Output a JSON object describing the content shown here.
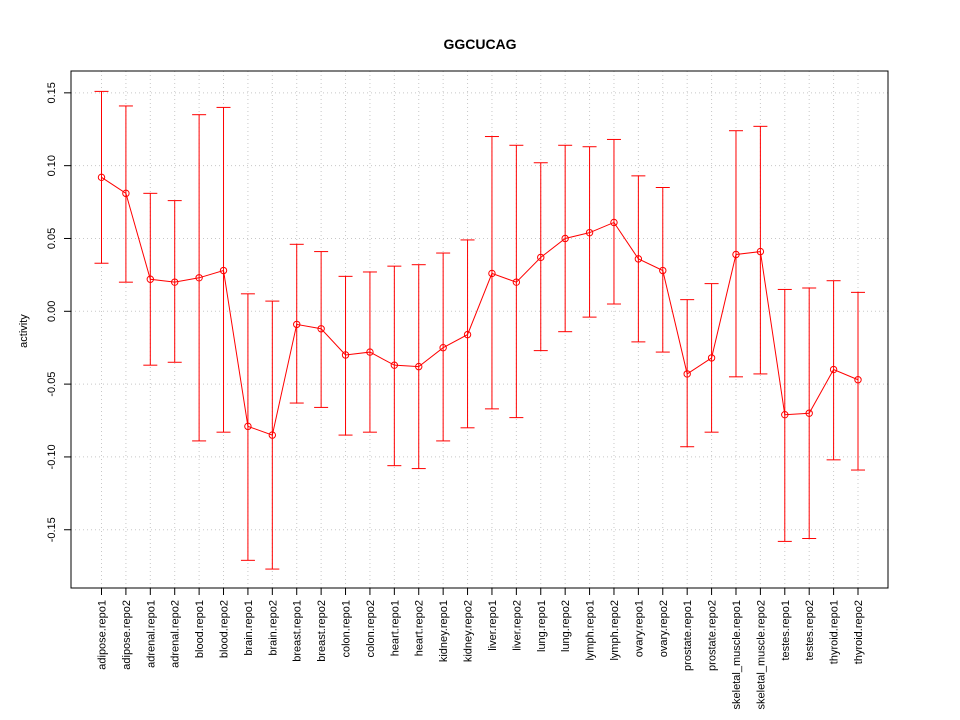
{
  "chart_data": {
    "type": "line",
    "title": "GGCUCAG",
    "xlabel": "",
    "ylabel": "activity",
    "ylim": [
      -0.19,
      0.165
    ],
    "yticks": [
      -0.15,
      -0.1,
      -0.05,
      0.0,
      0.05,
      0.1,
      0.15
    ],
    "ytick_labels": [
      "-0.15",
      "-0.10",
      "-0.05",
      "0.00",
      "0.05",
      "0.10",
      "0.15"
    ],
    "grid": true,
    "color": "#ff0000",
    "categories": [
      "adipose.repo1",
      "adipose.repo2",
      "adrenal.repo1",
      "adrenal.repo2",
      "blood.repo1",
      "blood.repo2",
      "brain.repo1",
      "brain.repo2",
      "breast.repo1",
      "breast.repo2",
      "colon.repo1",
      "colon.repo2",
      "heart.repo1",
      "heart.repo2",
      "kidney.repo1",
      "kidney.repo2",
      "liver.repo1",
      "liver.repo2",
      "lung.repo1",
      "lung.repo2",
      "lymph.repo1",
      "lymph.repo2",
      "ovary.repo1",
      "ovary.repo2",
      "prostate.repo1",
      "prostate.repo2",
      "skeletal_muscle.repo1",
      "skeletal_muscle.repo2",
      "testes.repo1",
      "testes.repo2",
      "thyroid.repo1",
      "thyroid.repo2"
    ],
    "values": [
      0.092,
      0.081,
      0.022,
      0.02,
      0.023,
      0.028,
      -0.079,
      -0.085,
      -0.009,
      -0.012,
      -0.03,
      -0.028,
      -0.037,
      -0.038,
      -0.025,
      -0.016,
      0.026,
      0.02,
      0.037,
      0.05,
      0.054,
      0.061,
      0.036,
      0.028,
      -0.043,
      -0.032,
      0.039,
      0.041,
      -0.071,
      -0.07,
      -0.04,
      -0.047
    ],
    "upper": [
      0.151,
      0.141,
      0.081,
      0.076,
      0.135,
      0.14,
      0.012,
      0.007,
      0.046,
      0.041,
      0.024,
      0.027,
      0.031,
      0.032,
      0.04,
      0.049,
      0.12,
      0.114,
      0.102,
      0.114,
      0.113,
      0.118,
      0.093,
      0.085,
      0.008,
      0.019,
      0.124,
      0.127,
      0.015,
      0.016,
      0.021,
      0.013
    ],
    "lower": [
      0.033,
      0.02,
      -0.037,
      -0.035,
      -0.089,
      -0.083,
      -0.171,
      -0.177,
      -0.063,
      -0.066,
      -0.085,
      -0.083,
      -0.106,
      -0.108,
      -0.089,
      -0.08,
      -0.067,
      -0.073,
      -0.027,
      -0.014,
      -0.004,
      0.005,
      -0.021,
      -0.028,
      -0.093,
      -0.083,
      -0.045,
      -0.043,
      -0.158,
      -0.156,
      -0.102,
      -0.109
    ]
  }
}
